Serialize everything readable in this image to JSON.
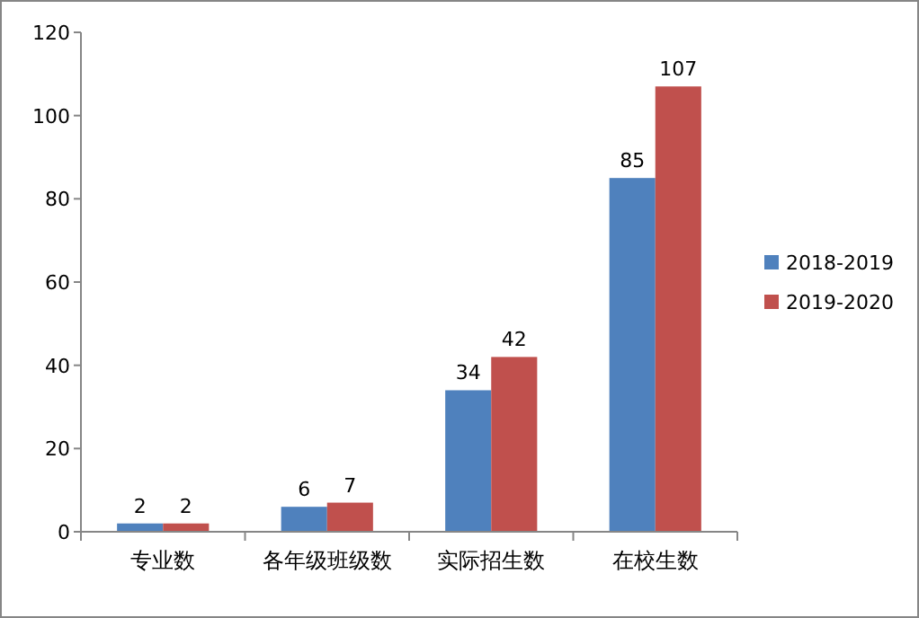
{
  "chart_data": {
    "type": "bar",
    "categories": [
      "专业数",
      "各年级班级数",
      "实际招生数",
      "在校生数"
    ],
    "series": [
      {
        "name": "2018-2019",
        "color": "#4f81bd",
        "values": [
          2,
          6,
          34,
          85
        ]
      },
      {
        "name": "2019-2020",
        "color": "#c0504d",
        "values": [
          2,
          7,
          42,
          107
        ]
      }
    ],
    "ylim": [
      0,
      120
    ],
    "yticks": [
      0,
      20,
      40,
      60,
      80,
      100,
      120
    ],
    "data_labels": true,
    "legend": "right"
  }
}
